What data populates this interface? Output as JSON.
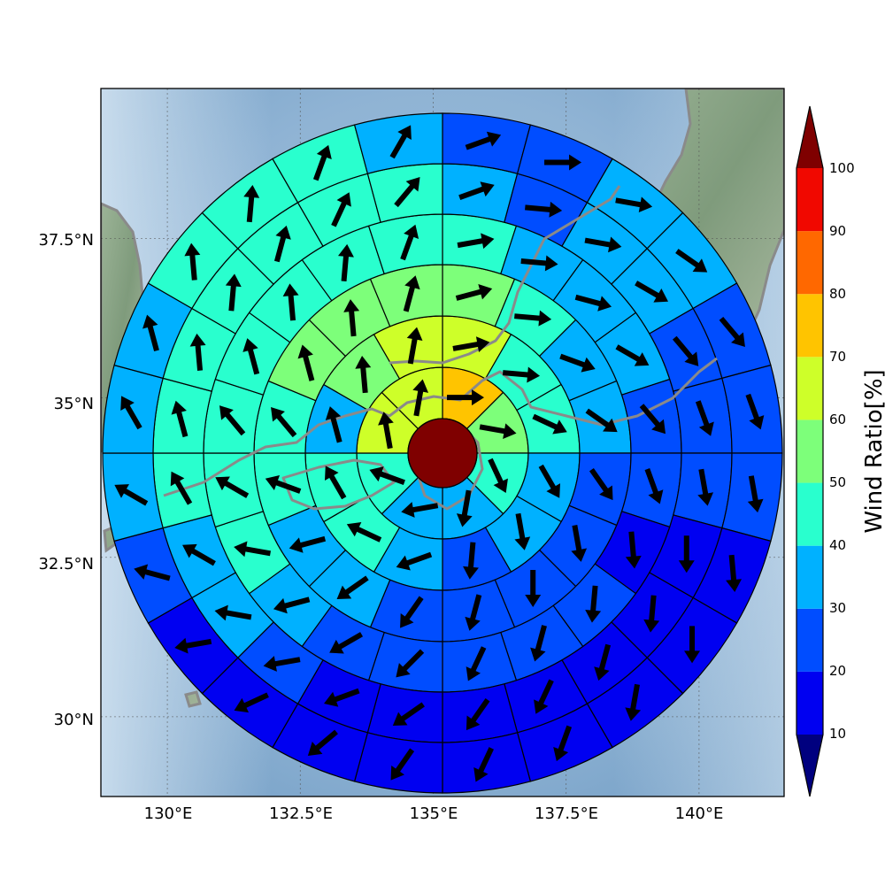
{
  "map": {
    "lon_ticks": [
      "130°E",
      "132.5°E",
      "135°E",
      "137.5°E",
      "140°E"
    ],
    "lat_ticks": [
      "37.5°N",
      "35°N",
      "32.5°N",
      "30°N"
    ],
    "lon_values": [
      130,
      132.5,
      135,
      137.5,
      140
    ],
    "lat_values": [
      37.5,
      35,
      32.5,
      30
    ],
    "extent": {
      "lon_min": 128.75,
      "lon_max": 141.6,
      "lat_min": 28.75,
      "lat_max": 39.85
    },
    "center": {
      "lon": 135.17,
      "lat": 34.22
    },
    "land_color": "#7e9c7c",
    "coast_color": "#8a8a8a",
    "ocean_color": "#9bbcd8"
  },
  "colorbar": {
    "title": "Wind Ratio[%]",
    "tick_labels": [
      "10",
      "20",
      "30",
      "40",
      "50",
      "60",
      "70",
      "80",
      "90",
      "100"
    ],
    "bins": [
      {
        "min": 0,
        "max": 10,
        "color": "#00007f"
      },
      {
        "min": 10,
        "max": 20,
        "color": "#0000f1"
      },
      {
        "min": 20,
        "max": 30,
        "color": "#004dff"
      },
      {
        "min": 30,
        "max": 40,
        "color": "#00b1ff"
      },
      {
        "min": 40,
        "max": 50,
        "color": "#29ffce"
      },
      {
        "min": 50,
        "max": 60,
        "color": "#7dff7a"
      },
      {
        "min": 60,
        "max": 70,
        "color": "#ceff29"
      },
      {
        "min": 70,
        "max": 80,
        "color": "#ffc400"
      },
      {
        "min": 80,
        "max": 90,
        "color": "#ff6800"
      },
      {
        "min": 90,
        "max": 100,
        "color": "#f10800"
      },
      {
        "min": 100,
        "max": 110,
        "color": "#7f0000"
      }
    ]
  },
  "center_disc": {
    "value": 105
  },
  "rings": [
    {
      "name": "ring-1",
      "values": [
        75,
        55,
        45,
        35,
        35,
        45,
        65,
        65
      ]
    },
    {
      "name": "ring-2",
      "values": [
        65,
        45,
        45,
        35,
        35,
        25,
        35,
        45,
        45,
        35,
        55,
        65
      ]
    },
    {
      "name": "ring-3",
      "values": [
        55,
        45,
        35,
        35,
        25,
        25,
        25,
        25,
        25,
        35,
        35,
        45,
        45,
        55,
        55,
        55
      ]
    },
    {
      "name": "ring-4",
      "values": [
        45,
        35,
        35,
        35,
        25,
        25,
        15,
        25,
        25,
        25,
        25,
        25,
        35,
        45,
        45,
        45,
        45,
        45,
        45,
        45
      ]
    },
    {
      "name": "ring-5",
      "values": [
        35,
        25,
        35,
        35,
        25,
        25,
        25,
        15,
        15,
        15,
        15,
        15,
        15,
        15,
        25,
        35,
        35,
        45,
        45,
        45,
        45,
        45,
        45,
        45
      ]
    },
    {
      "name": "ring-6",
      "values": [
        25,
        25,
        35,
        35,
        25,
        25,
        25,
        15,
        15,
        15,
        15,
        15,
        15,
        15,
        15,
        15,
        25,
        35,
        35,
        35,
        45,
        45,
        45,
        35
      ]
    }
  ],
  "arrow_headings_deg": {
    "ring-1": [
      90,
      100,
      155,
      190,
      260,
      290,
      350,
      10
    ],
    "ring-2": [
      80,
      95,
      115,
      150,
      170,
      185,
      250,
      295,
      330,
      345,
      355,
      10
    ],
    "ring-3": [
      75,
      95,
      110,
      125,
      145,
      170,
      180,
      195,
      215,
      235,
      255,
      290,
      320,
      345,
      355,
      15
    ],
    "ring-4": [
      80,
      95,
      105,
      120,
      140,
      160,
      175,
      185,
      195,
      205,
      225,
      240,
      255,
      280,
      300,
      320,
      345,
      355,
      5,
      20
    ],
    "ring-5": [
      70,
      95,
      100,
      120,
      140,
      160,
      170,
      180,
      185,
      195,
      205,
      215,
      235,
      250,
      260,
      280,
      300,
      330,
      345,
      355,
      5,
      15,
      25,
      40
    ],
    "ring-6": [
      70,
      90,
      100,
      125,
      140,
      160,
      170,
      175,
      180,
      190,
      200,
      205,
      215,
      230,
      245,
      260,
      285,
      300,
      330,
      345,
      355,
      5,
      20,
      30
    ]
  }
}
